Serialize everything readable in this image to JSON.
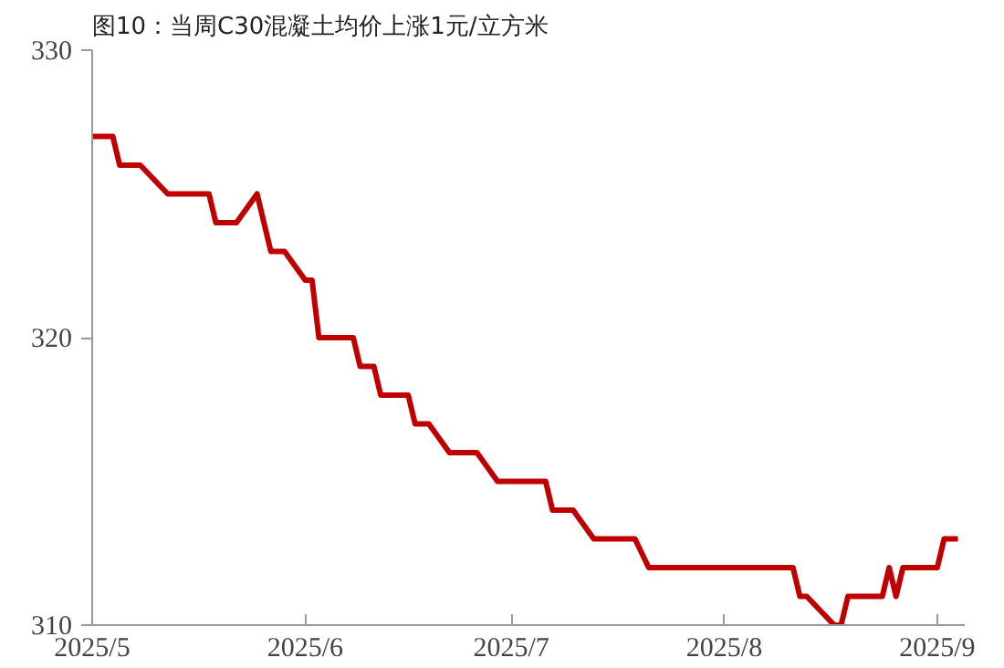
{
  "chart_data": {
    "type": "line",
    "title": "图10：当周C30混凝土均价上涨1元/立方米",
    "x": [
      "2025-05-01",
      "2025-05-04",
      "2025-05-05",
      "2025-05-08",
      "2025-05-12",
      "2025-05-18",
      "2025-05-19",
      "2025-05-22",
      "2025-05-25",
      "2025-05-27",
      "2025-05-29",
      "2025-06-01",
      "2025-06-02",
      "2025-06-03",
      "2025-06-08",
      "2025-06-09",
      "2025-06-11",
      "2025-06-12",
      "2025-06-16",
      "2025-06-17",
      "2025-06-19",
      "2025-06-22",
      "2025-06-26",
      "2025-06-29",
      "2025-07-06",
      "2025-07-07",
      "2025-07-10",
      "2025-07-13",
      "2025-07-19",
      "2025-07-21",
      "2025-08-11",
      "2025-08-12",
      "2025-08-13",
      "2025-08-17",
      "2025-08-18",
      "2025-08-19",
      "2025-08-24",
      "2025-08-25",
      "2025-08-26",
      "2025-08-27",
      "2025-09-01",
      "2025-09-02",
      "2025-09-04"
    ],
    "series": [
      {
        "color": "#c00000",
        "values": [
          327,
          327,
          326,
          326,
          325,
          325,
          324,
          324,
          325,
          323,
          323,
          322,
          322,
          320,
          320,
          319,
          319,
          318,
          318,
          317,
          317,
          316,
          316,
          315,
          315,
          314,
          314,
          313,
          313,
          312,
          312,
          311,
          311,
          310,
          310,
          311,
          311,
          312,
          311,
          312,
          312,
          313,
          313
        ]
      }
    ],
    "xlim": [
      "2025-05-01",
      "2025-09-05"
    ],
    "xticks": [
      {
        "value": "2025-05-01",
        "label": "2025/5"
      },
      {
        "value": "2025-06-01",
        "label": "2025/6"
      },
      {
        "value": "2025-07-01",
        "label": "2025/7"
      },
      {
        "value": "2025-08-01",
        "label": "2025/8"
      },
      {
        "value": "2025-09-01",
        "label": "2025/9"
      }
    ],
    "ylim": [
      310,
      330
    ],
    "yticks": [
      310,
      320,
      330
    ],
    "grid": false
  }
}
